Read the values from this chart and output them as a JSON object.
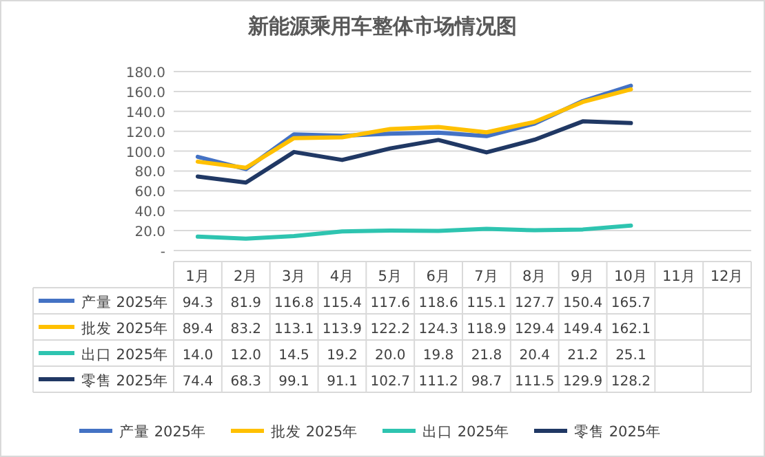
{
  "chart_data": {
    "type": "line",
    "title": "新能源乘用车整体市场情况图",
    "categories": [
      "1月",
      "2月",
      "3月",
      "4月",
      "5月",
      "6月",
      "7月",
      "8月",
      "9月",
      "10月",
      "11月",
      "12月"
    ],
    "series": [
      {
        "name": "产量 2025年",
        "color": "#4472c4",
        "values": [
          94.3,
          81.9,
          116.8,
          115.4,
          117.6,
          118.6,
          115.1,
          127.7,
          150.4,
          165.7,
          null,
          null
        ],
        "value_labels": [
          "94.3",
          "81.9",
          "116.8",
          "115.4",
          "117.6",
          "118.6",
          "115.1",
          "127.7",
          "150.4",
          "165.7",
          null,
          null
        ]
      },
      {
        "name": "批发 2025年",
        "color": "#ffc000",
        "values": [
          89.4,
          83.2,
          113.1,
          113.9,
          122.2,
          124.3,
          118.9,
          129.4,
          149.4,
          162.1,
          null,
          null
        ],
        "value_labels": [
          "89.4",
          "83.2",
          "113.1",
          "113.9",
          "122.2",
          "124.3",
          "118.9",
          "129.4",
          "149.4",
          "162.1",
          null,
          null
        ]
      },
      {
        "name": "出口 2025年",
        "color": "#2ec4b0",
        "values": [
          14.0,
          12.0,
          14.5,
          19.2,
          20.0,
          19.8,
          21.8,
          20.4,
          21.2,
          25.1,
          null,
          null
        ],
        "value_labels": [
          "14.0",
          "12.0",
          "14.5",
          "19.2",
          "20.0",
          "19.8",
          "21.8",
          "20.4",
          "21.2",
          "25.1",
          null,
          null
        ]
      },
      {
        "name": "零售 2025年",
        "color": "#203864",
        "values": [
          74.4,
          68.3,
          99.1,
          91.1,
          102.7,
          111.2,
          98.7,
          111.5,
          129.9,
          128.2,
          null,
          null
        ],
        "value_labels": [
          "74.4",
          "68.3",
          "99.1",
          "91.1",
          "102.7",
          "111.2",
          "98.7",
          "111.5",
          "129.9",
          "128.2",
          null,
          null
        ]
      }
    ],
    "ylim": [
      0,
      180
    ],
    "yticks": [
      {
        "value": 0,
        "label": "-"
      },
      {
        "value": 20,
        "label": "20.0"
      },
      {
        "value": 40,
        "label": "40.0"
      },
      {
        "value": 60,
        "label": "60.0"
      },
      {
        "value": 80,
        "label": "80.0"
      },
      {
        "value": 100,
        "label": "100.0"
      },
      {
        "value": 120,
        "label": "120.0"
      },
      {
        "value": 140,
        "label": "140.0"
      },
      {
        "value": 160,
        "label": "160.0"
      },
      {
        "value": 180,
        "label": "180.0"
      }
    ],
    "grid": "y",
    "legend": "bottom",
    "marker": "none",
    "line_style": "solid"
  }
}
